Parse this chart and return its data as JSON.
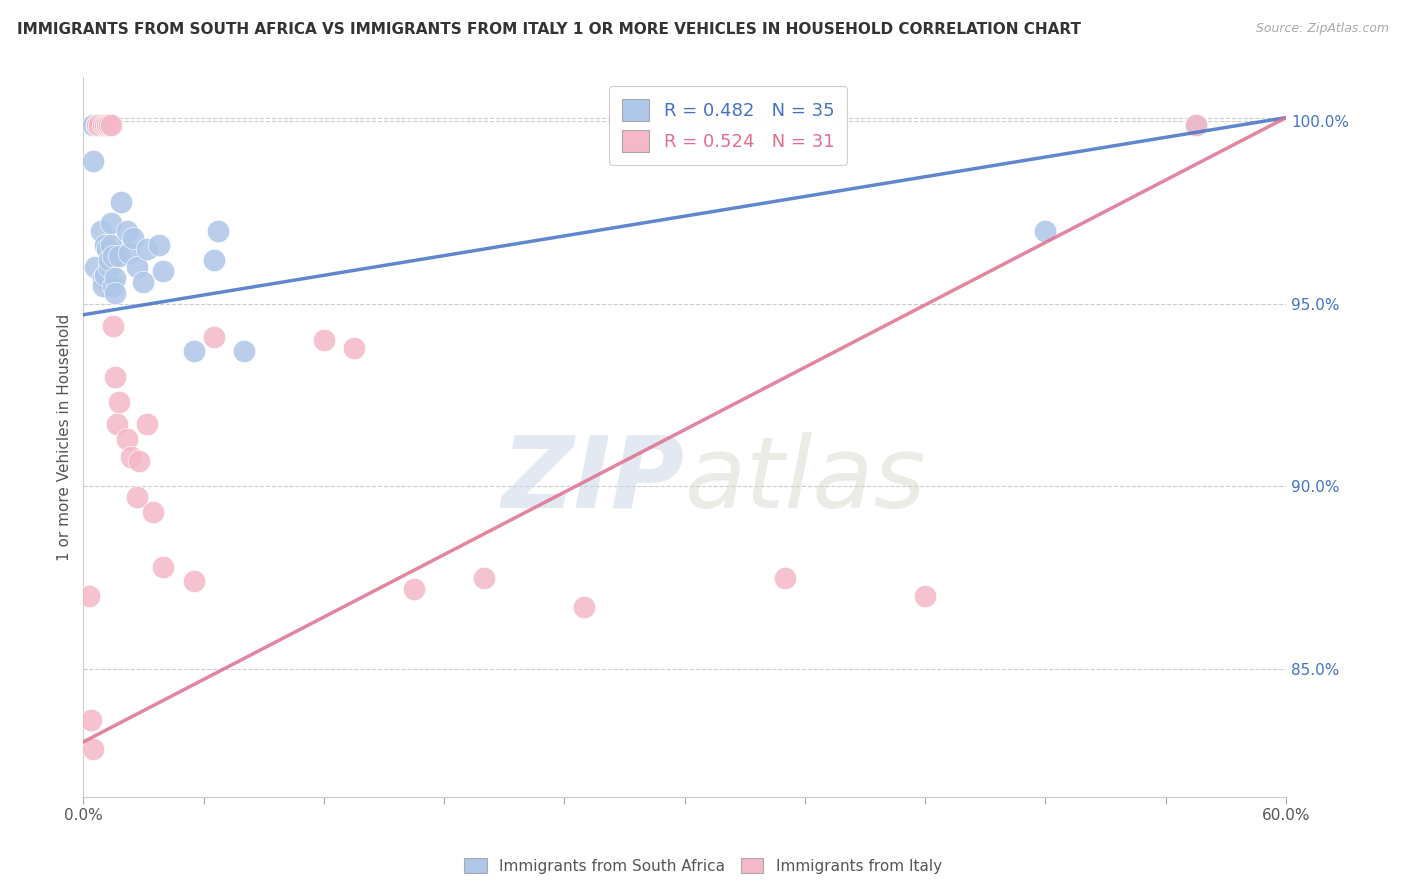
{
  "title": "IMMIGRANTS FROM SOUTH AFRICA VS IMMIGRANTS FROM ITALY 1 OR MORE VEHICLES IN HOUSEHOLD CORRELATION CHART",
  "source": "Source: ZipAtlas.com",
  "ylabel": "1 or more Vehicles in Household",
  "xlim": [
    0.0,
    0.6
  ],
  "ylim": [
    0.815,
    1.012
  ],
  "south_africa_R": 0.482,
  "south_africa_N": 35,
  "italy_R": 0.524,
  "italy_N": 31,
  "south_africa_color": "#aec6e8",
  "italy_color": "#f4b8c8",
  "south_africa_line_color": "#4472c4",
  "italy_line_color": "#e07090",
  "sa_line_x0": 0.0,
  "sa_line_y0": 0.947,
  "sa_line_x1": 0.6,
  "sa_line_y1": 1.001,
  "it_line_x0": 0.0,
  "it_line_y0": 0.83,
  "it_line_x1": 0.6,
  "it_line_y1": 1.001,
  "south_africa_points_x": [
    0.005,
    0.005,
    0.006,
    0.007,
    0.008,
    0.009,
    0.01,
    0.01,
    0.011,
    0.011,
    0.012,
    0.013,
    0.013,
    0.014,
    0.014,
    0.015,
    0.015,
    0.016,
    0.016,
    0.018,
    0.019,
    0.022,
    0.023,
    0.025,
    0.027,
    0.03,
    0.032,
    0.038,
    0.04,
    0.055,
    0.065,
    0.067,
    0.08,
    0.48,
    0.555
  ],
  "south_africa_points_y": [
    0.999,
    0.989,
    0.96,
    0.999,
    0.999,
    0.97,
    0.957,
    0.955,
    0.966,
    0.958,
    0.965,
    0.96,
    0.962,
    0.972,
    0.966,
    0.963,
    0.955,
    0.957,
    0.953,
    0.963,
    0.978,
    0.97,
    0.964,
    0.968,
    0.96,
    0.956,
    0.965,
    0.966,
    0.959,
    0.937,
    0.962,
    0.97,
    0.937,
    0.97,
    0.999
  ],
  "italy_points_x": [
    0.003,
    0.004,
    0.005,
    0.007,
    0.008,
    0.01,
    0.011,
    0.012,
    0.013,
    0.014,
    0.015,
    0.016,
    0.017,
    0.018,
    0.022,
    0.024,
    0.027,
    0.028,
    0.032,
    0.035,
    0.04,
    0.055,
    0.065,
    0.12,
    0.135,
    0.165,
    0.2,
    0.25,
    0.35,
    0.42,
    0.555
  ],
  "italy_points_y": [
    0.87,
    0.836,
    0.828,
    0.999,
    0.999,
    0.999,
    0.999,
    0.999,
    0.999,
    0.999,
    0.944,
    0.93,
    0.917,
    0.923,
    0.913,
    0.908,
    0.897,
    0.907,
    0.917,
    0.893,
    0.878,
    0.874,
    0.941,
    0.94,
    0.938,
    0.872,
    0.875,
    0.867,
    0.875,
    0.87,
    0.999
  ]
}
